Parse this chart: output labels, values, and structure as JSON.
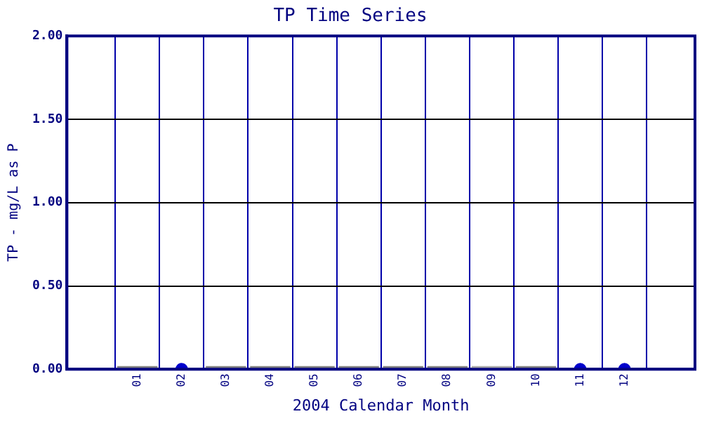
{
  "chart_data": {
    "type": "scatter",
    "title": "TP Time Series",
    "xlabel": "2004 Calendar Month",
    "ylabel": "TP - mg/L as P",
    "categories": [
      "01",
      "02",
      "03",
      "04",
      "05",
      "06",
      "07",
      "08",
      "09",
      "10",
      "11",
      "12"
    ],
    "series": [
      {
        "color": "#0000cc",
        "marker": "circle",
        "values": [
          null,
          0,
          null,
          null,
          null,
          null,
          null,
          null,
          null,
          null,
          0,
          0
        ]
      },
      {
        "type": "bar",
        "colors": [
          "#808080",
          null,
          "#808080",
          "#808080",
          "#808080",
          "#808080",
          "#808080",
          "#808080",
          "#a8a8a8",
          "#808080",
          null,
          null
        ],
        "values": [
          0,
          null,
          0,
          0,
          0,
          0,
          0,
          0,
          0,
          0,
          null,
          null
        ]
      }
    ],
    "ylim": [
      0,
      2
    ],
    "yticks": [
      {
        "value": 0,
        "label": "0.00"
      },
      {
        "value": 0.5,
        "label": "0.50"
      },
      {
        "value": 1,
        "label": "1.00"
      },
      {
        "value": 1.5,
        "label": "1.50"
      },
      {
        "value": 2,
        "label": "2.00"
      }
    ],
    "grid": true
  }
}
